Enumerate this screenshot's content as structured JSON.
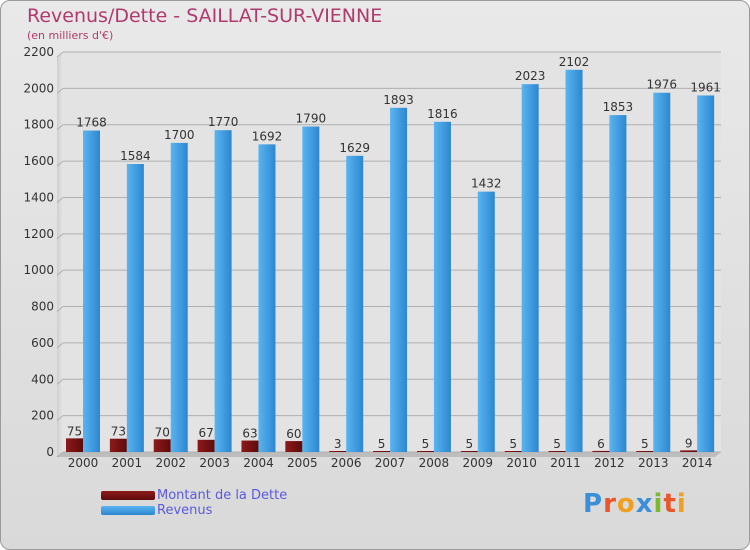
{
  "title": "Revenus/Dette - SAILLAT-SUR-VIENNE",
  "subtitle": "(en milliers d'€)",
  "logo_text": "Proxiti",
  "colors": {
    "debt": "#7a1010",
    "revenue": "#3a9ee4",
    "title": "#b03a6e",
    "legend_text": "#5a5adf"
  },
  "chart_data": {
    "type": "bar",
    "title": "Revenus/Dette - SAILLAT-SUR-VIENNE",
    "ylabel": "(en milliers d'€)",
    "ylim": [
      0,
      2200
    ],
    "yticks": [
      0,
      200,
      400,
      600,
      800,
      1000,
      1200,
      1400,
      1600,
      1800,
      2000,
      2200
    ],
    "grid": true,
    "legend_position": "bottom-left",
    "categories": [
      "2000",
      "2001",
      "2002",
      "2003",
      "2004",
      "2005",
      "2006",
      "2007",
      "2008",
      "2009",
      "2010",
      "2011",
      "2012",
      "2013",
      "2014"
    ],
    "series": [
      {
        "name": "Montant de la Dette",
        "color": "#7a1010",
        "values": [
          75,
          73,
          70,
          67,
          63,
          60,
          3,
          5,
          5,
          5,
          5,
          5,
          6,
          5,
          9
        ]
      },
      {
        "name": "Revenus",
        "color": "#3a9ee4",
        "values": [
          1768,
          1584,
          1700,
          1770,
          1692,
          1790,
          1629,
          1893,
          1816,
          1432,
          2023,
          2102,
          1853,
          1976,
          1961
        ]
      }
    ]
  }
}
